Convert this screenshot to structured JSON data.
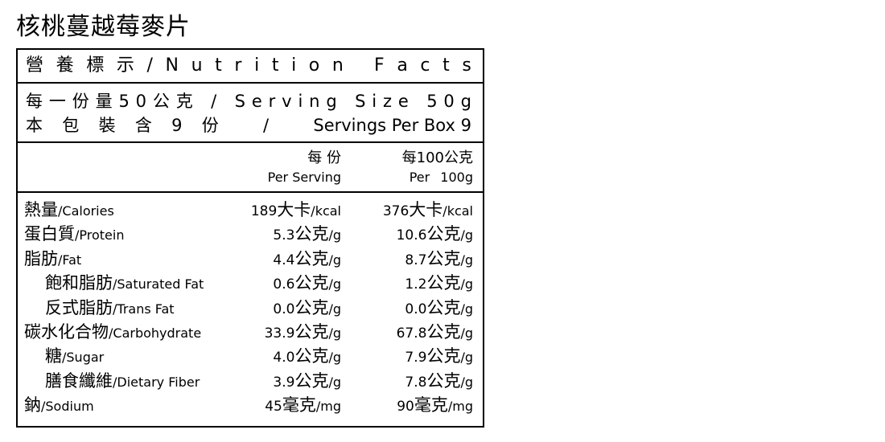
{
  "product_title": "核桃蔓越莓麥片",
  "header": {
    "chars": [
      "營",
      "養",
      "標",
      "示",
      "/",
      "N",
      "u",
      "t",
      "r",
      "i",
      "t",
      "i",
      "o",
      "n",
      " ",
      "F",
      "a",
      "c",
      "t",
      "s"
    ]
  },
  "serving": {
    "line1": [
      "每",
      "一",
      "份",
      "量",
      "5",
      "0",
      "公",
      "克",
      " ",
      "/",
      " ",
      "S",
      "e",
      "r",
      "v",
      "i",
      "n",
      "g",
      " ",
      "S",
      "i",
      "z",
      "e",
      " ",
      "5",
      "0",
      "g"
    ],
    "line2": [
      "本",
      "包",
      "裝",
      "含",
      "9",
      "份",
      " ",
      "/",
      " ",
      "Servings Per Box 9"
    ]
  },
  "columns": {
    "per_serving_zh": "每 份",
    "per_serving_en": "Per Serving",
    "per_100_zh": "每100公克",
    "per_100_en": "Per 100g"
  },
  "rows": [
    {
      "zh": "熱量",
      "en": "/Calories",
      "indent": false,
      "v1": "189",
      "u1zh": "大卡",
      "u1en": "/kcal",
      "v2": "376",
      "u2zh": "大卡",
      "u2en": "/kcal"
    },
    {
      "zh": "蛋白質",
      "en": "/Protein",
      "indent": false,
      "v1": "5.3",
      "u1zh": "公克",
      "u1en": "/g",
      "v2": "10.6",
      "u2zh": "公克",
      "u2en": "/g"
    },
    {
      "zh": "脂肪",
      "en": "/Fat",
      "indent": false,
      "v1": "4.4",
      "u1zh": "公克",
      "u1en": "/g",
      "v2": "8.7",
      "u2zh": "公克",
      "u2en": "/g"
    },
    {
      "zh": "飽和脂肪",
      "en": "/Saturated Fat",
      "indent": true,
      "v1": "0.6",
      "u1zh": "公克",
      "u1en": "/g",
      "v2": "1.2",
      "u2zh": "公克",
      "u2en": "/g"
    },
    {
      "zh": "反式脂肪",
      "en": "/Trans Fat",
      "indent": true,
      "v1": "0.0",
      "u1zh": "公克",
      "u1en": "/g",
      "v2": "0.0",
      "u2zh": "公克",
      "u2en": "/g"
    },
    {
      "zh": "碳水化合物",
      "en": "/Carbohydrate",
      "indent": false,
      "v1": "33.9",
      "u1zh": "公克",
      "u1en": "/g",
      "v2": "67.8",
      "u2zh": "公克",
      "u2en": "/g"
    },
    {
      "zh": "糖",
      "en": "/Sugar",
      "indent": true,
      "v1": "4.0",
      "u1zh": "公克",
      "u1en": "/g",
      "v2": "7.9",
      "u2zh": "公克",
      "u2en": "/g"
    },
    {
      "zh": "膳食纖維",
      "en": "/Dietary Fiber",
      "indent": true,
      "v1": "3.9",
      "u1zh": "公克",
      "u1en": "/g",
      "v2": "7.8",
      "u2zh": "公克",
      "u2en": "/g"
    },
    {
      "zh": "鈉",
      "en": "/Sodium",
      "indent": false,
      "v1": "45",
      "u1zh": "毫克",
      "u1en": "/mg",
      "v2": "90",
      "u2zh": "毫克",
      "u2en": "/mg"
    }
  ]
}
